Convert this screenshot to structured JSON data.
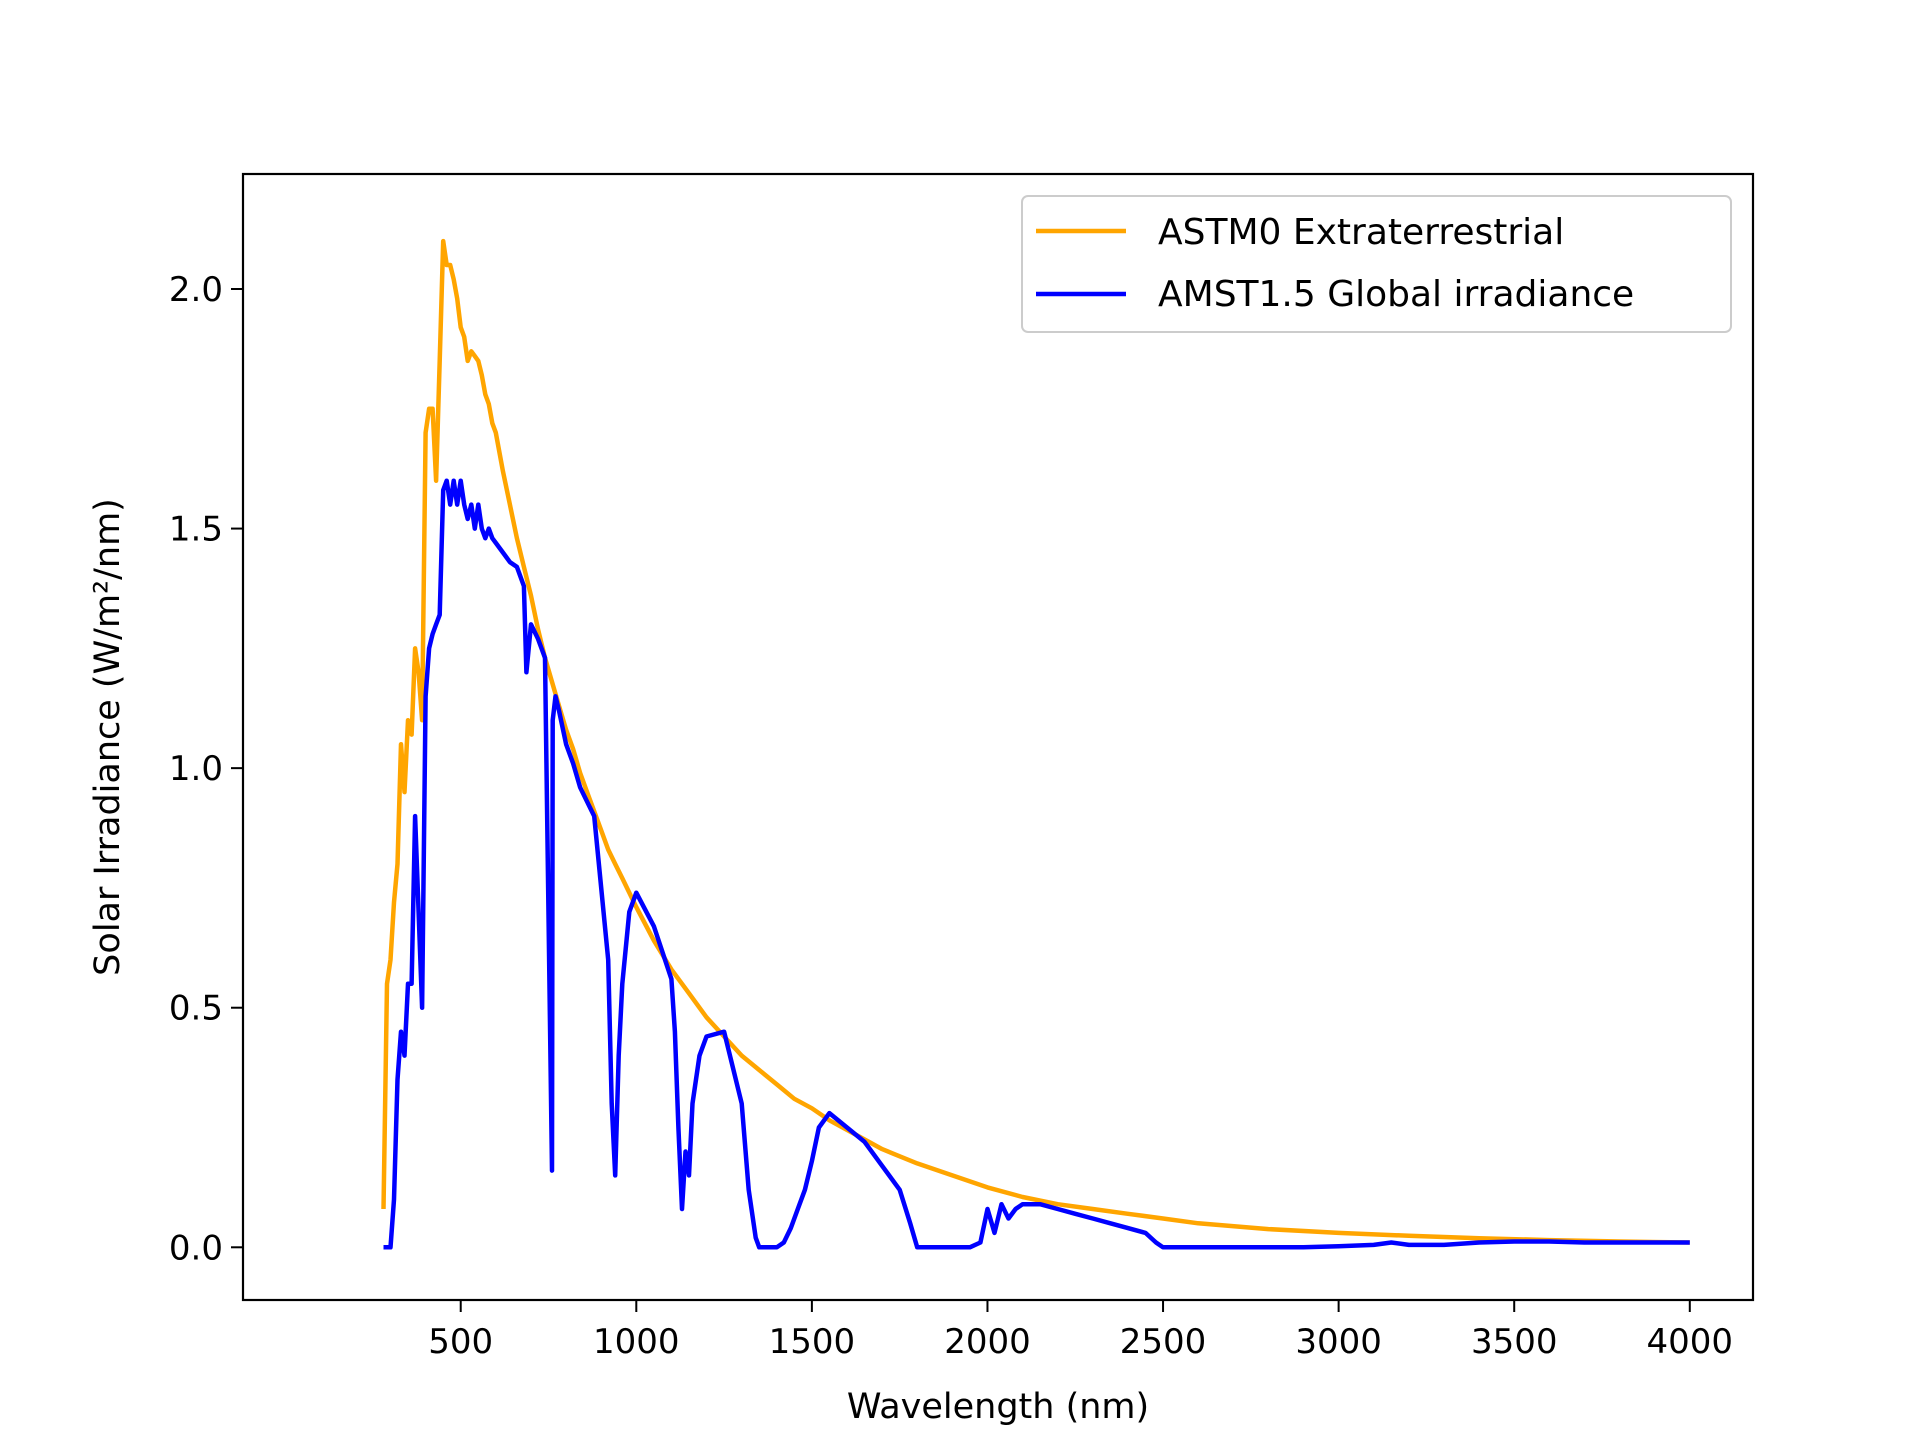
{
  "chart_data": {
    "type": "line",
    "title": "",
    "xlabel": "Wavelength (nm)",
    "ylabel": "Solar Irradiance (W/m²/nm)",
    "xlim": [
      -120,
      4180
    ],
    "ylim": [
      -0.11,
      2.24
    ],
    "xticks": [
      500,
      1000,
      1500,
      2000,
      2500,
      3000,
      3500,
      4000
    ],
    "xtick_labels": [
      "500",
      "1000",
      "1500",
      "2000",
      "2500",
      "3000",
      "3500",
      "4000"
    ],
    "yticks": [
      0.0,
      0.5,
      1.0,
      1.5,
      2.0
    ],
    "ytick_labels": [
      "0.0",
      "0.5",
      "1.0",
      "1.5",
      "2.0"
    ],
    "grid": false,
    "legend_position": "top-right",
    "series": [
      {
        "name": "ASTM0 Extraterrestrial",
        "color": "#FFA500",
        "x": [
          280,
          290,
          300,
          310,
          320,
          330,
          340,
          350,
          360,
          370,
          380,
          390,
          400,
          410,
          420,
          430,
          440,
          450,
          460,
          470,
          480,
          490,
          500,
          510,
          520,
          530,
          540,
          550,
          560,
          570,
          580,
          590,
          600,
          620,
          640,
          660,
          680,
          700,
          720,
          740,
          760,
          780,
          800,
          820,
          840,
          860,
          880,
          900,
          920,
          940,
          960,
          980,
          1000,
          1050,
          1100,
          1150,
          1200,
          1250,
          1300,
          1350,
          1400,
          1450,
          1500,
          1550,
          1600,
          1650,
          1700,
          1750,
          1800,
          1900,
          2000,
          2100,
          2200,
          2300,
          2400,
          2500,
          2600,
          2800,
          3000,
          3200,
          3400,
          3600,
          3800,
          4000
        ],
        "y": [
          0.08,
          0.55,
          0.6,
          0.72,
          0.8,
          1.05,
          0.95,
          1.1,
          1.07,
          1.25,
          1.2,
          1.1,
          1.7,
          1.75,
          1.75,
          1.6,
          1.85,
          2.1,
          2.05,
          2.05,
          2.02,
          1.98,
          1.92,
          1.9,
          1.85,
          1.87,
          1.86,
          1.85,
          1.82,
          1.78,
          1.76,
          1.72,
          1.7,
          1.62,
          1.55,
          1.48,
          1.42,
          1.36,
          1.29,
          1.23,
          1.18,
          1.13,
          1.08,
          1.04,
          0.99,
          0.95,
          0.91,
          0.87,
          0.83,
          0.8,
          0.77,
          0.74,
          0.71,
          0.64,
          0.58,
          0.53,
          0.48,
          0.44,
          0.4,
          0.37,
          0.34,
          0.31,
          0.29,
          0.265,
          0.245,
          0.225,
          0.205,
          0.19,
          0.175,
          0.15,
          0.125,
          0.105,
          0.09,
          0.08,
          0.07,
          0.06,
          0.05,
          0.038,
          0.03,
          0.024,
          0.019,
          0.015,
          0.012,
          0.01
        ]
      },
      {
        "name": "AMST1.5 Global irradiance",
        "color": "#0000FF",
        "x": [
          280,
          290,
          300,
          310,
          320,
          330,
          340,
          350,
          360,
          370,
          380,
          390,
          400,
          410,
          420,
          430,
          440,
          450,
          460,
          470,
          480,
          490,
          500,
          510,
          520,
          530,
          540,
          550,
          560,
          570,
          580,
          590,
          600,
          620,
          640,
          660,
          680,
          687,
          700,
          720,
          740,
          760,
          762,
          770,
          780,
          800,
          820,
          840,
          860,
          880,
          900,
          920,
          930,
          940,
          950,
          960,
          980,
          1000,
          1050,
          1100,
          1110,
          1120,
          1130,
          1140,
          1150,
          1160,
          1180,
          1200,
          1250,
          1300,
          1320,
          1340,
          1350,
          1360,
          1380,
          1400,
          1420,
          1440,
          1460,
          1480,
          1500,
          1520,
          1550,
          1600,
          1650,
          1700,
          1750,
          1780,
          1800,
          1850,
          1900,
          1950,
          1980,
          2000,
          2020,
          2040,
          2060,
          2080,
          2100,
          2150,
          2200,
          2250,
          2300,
          2350,
          2400,
          2450,
          2480,
          2500,
          2550,
          2600,
          2700,
          2800,
          2900,
          3000,
          3100,
          3150,
          3200,
          3300,
          3400,
          3500,
          3600,
          3700,
          3800,
          3900,
          4000
        ],
        "y": [
          0.0,
          0.0,
          0.0,
          0.1,
          0.35,
          0.45,
          0.4,
          0.55,
          0.55,
          0.9,
          0.7,
          0.5,
          1.15,
          1.25,
          1.28,
          1.3,
          1.32,
          1.58,
          1.6,
          1.55,
          1.6,
          1.55,
          1.6,
          1.55,
          1.52,
          1.55,
          1.5,
          1.55,
          1.5,
          1.48,
          1.5,
          1.48,
          1.47,
          1.45,
          1.43,
          1.42,
          1.38,
          1.2,
          1.3,
          1.27,
          1.23,
          0.16,
          1.1,
          1.15,
          1.12,
          1.05,
          1.01,
          0.96,
          0.93,
          0.9,
          0.75,
          0.6,
          0.3,
          0.15,
          0.4,
          0.55,
          0.7,
          0.74,
          0.67,
          0.56,
          0.45,
          0.25,
          0.08,
          0.2,
          0.15,
          0.3,
          0.4,
          0.44,
          0.45,
          0.3,
          0.12,
          0.02,
          0.0,
          0.0,
          0.0,
          0.0,
          0.01,
          0.04,
          0.08,
          0.12,
          0.18,
          0.25,
          0.28,
          0.25,
          0.22,
          0.17,
          0.12,
          0.05,
          0.0,
          0.0,
          0.0,
          0.0,
          0.01,
          0.08,
          0.03,
          0.09,
          0.06,
          0.08,
          0.09,
          0.09,
          0.08,
          0.07,
          0.06,
          0.05,
          0.04,
          0.03,
          0.01,
          0.0,
          0.0,
          0.0,
          0.0,
          0.0,
          0.0,
          0.002,
          0.005,
          0.01,
          0.005,
          0.005,
          0.01,
          0.012,
          0.012,
          0.01,
          0.01,
          0.01,
          0.01
        ]
      }
    ]
  }
}
